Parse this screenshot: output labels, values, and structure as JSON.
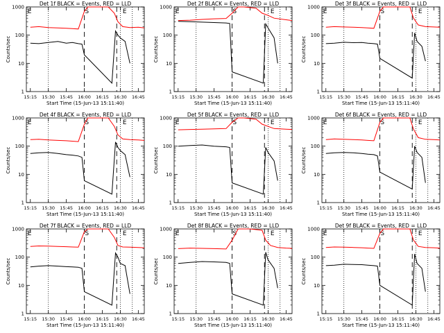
{
  "chart_data": [
    {
      "type": "line",
      "title": "Det 1f BLACK = Events, RED = LLD",
      "xlabel": "Start Time (15-Jun-13 15:11:40)",
      "ylabel": "Counts/sec",
      "yscale": "log",
      "ylim": [
        1,
        1000
      ],
      "y_ticks": [
        "1",
        "10",
        "100",
        "1000"
      ],
      "x_ticks": [
        "15:15",
        "15:30",
        "15:45",
        "16:00",
        "16:15",
        "16:30",
        "16:45"
      ],
      "grid": false,
      "markers": [
        "E",
        "S",
        "E"
      ],
      "colors": {
        "events": "#000000",
        "lld": "#ff0000"
      },
      "series": [
        {
          "name": "Events",
          "color": "#000000",
          "x": [
            "15:15",
            "15:22",
            "15:30",
            "15:38",
            "15:45",
            "15:50",
            "15:55",
            "15:58",
            "16:00",
            "16:23",
            "16:26",
            "16:28",
            "16:30",
            "16:34",
            "16:38"
          ],
          "values": [
            52,
            50,
            55,
            60,
            52,
            55,
            50,
            48,
            20,
            2,
            140,
            100,
            80,
            60,
            10
          ]
        },
        {
          "name": "LLD",
          "color": "#ff0000",
          "x": [
            "15:15",
            "15:22",
            "15:30",
            "15:38",
            "15:45",
            "15:50",
            "15:55",
            "16:00",
            "16:03",
            "16:20",
            "16:25",
            "16:28",
            "16:32",
            "16:38",
            "16:45",
            "16:50"
          ],
          "values": [
            190,
            200,
            185,
            180,
            175,
            170,
            165,
            700,
            1000,
            1000,
            600,
            300,
            200,
            185,
            190,
            180
          ]
        }
      ]
    },
    {
      "type": "line",
      "title": "Det 2f BLACK = Events, RED = LLD",
      "xlabel": "Start Time (15-Jun-13 15:11:40)",
      "ylabel": "Counts/sec",
      "yscale": "log",
      "ylim": [
        1,
        1000
      ],
      "y_ticks": [
        "1",
        "10",
        "100",
        "1000"
      ],
      "x_ticks": [
        "15:15",
        "15:30",
        "15:45",
        "16:00",
        "16:15",
        "16:30",
        "16:45"
      ],
      "grid": false,
      "markers": [
        "E",
        "S",
        "E"
      ],
      "colors": {
        "events": "#000000",
        "lld": "#ff0000"
      },
      "series": [
        {
          "name": "Events",
          "color": "#000000",
          "x": [
            "15:15",
            "15:25",
            "15:35",
            "15:45",
            "15:55",
            "15:58",
            "16:00",
            "16:26",
            "16:28",
            "16:30",
            "16:35",
            "16:38"
          ],
          "values": [
            310,
            300,
            290,
            280,
            270,
            260,
            5,
            2,
            250,
            180,
            80,
            10
          ]
        },
        {
          "name": "LLD",
          "color": "#ff0000",
          "x": [
            "15:15",
            "15:25",
            "15:35",
            "15:45",
            "15:55",
            "16:00",
            "16:05",
            "16:10",
            "16:20",
            "16:25",
            "16:30",
            "16:35",
            "16:45",
            "16:50"
          ],
          "values": [
            330,
            340,
            360,
            380,
            390,
            600,
            1000,
            1000,
            900,
            600,
            500,
            400,
            350,
            330
          ]
        }
      ]
    },
    {
      "type": "line",
      "title": "Det 3f BLACK = Events, RED = LLD",
      "xlabel": "Start Time (15-Jun-13 15:11:40)",
      "ylabel": "Counts/sec",
      "yscale": "log",
      "ylim": [
        1,
        1000
      ],
      "y_ticks": [
        "1",
        "10",
        "100",
        "1000"
      ],
      "x_ticks": [
        "15:15",
        "15:30",
        "15:45",
        "16:00",
        "16:15",
        "16:30",
        "16:45"
      ],
      "grid": false,
      "markers": [
        "E",
        "S",
        "E"
      ],
      "colors": {
        "events": "#000000",
        "lld": "#ff0000"
      },
      "series": [
        {
          "name": "Events",
          "color": "#000000",
          "x": [
            "15:15",
            "15:22",
            "15:30",
            "15:38",
            "15:45",
            "15:50",
            "15:55",
            "15:58",
            "16:00",
            "16:27",
            "16:29",
            "16:31",
            "16:35",
            "16:38"
          ],
          "values": [
            50,
            52,
            56,
            54,
            55,
            52,
            50,
            48,
            15,
            3,
            120,
            60,
            40,
            12
          ]
        },
        {
          "name": "LLD",
          "color": "#ff0000",
          "x": [
            "15:15",
            "15:22",
            "15:30",
            "15:38",
            "15:45",
            "15:50",
            "15:55",
            "16:00",
            "16:03",
            "16:25",
            "16:28",
            "16:32",
            "16:38",
            "16:45",
            "16:50"
          ],
          "values": [
            190,
            200,
            195,
            190,
            185,
            180,
            175,
            700,
            1000,
            1000,
            400,
            230,
            200,
            195,
            190
          ]
        }
      ]
    },
    {
      "type": "line",
      "title": "Det 4f BLACK = Events, RED = LLD",
      "xlabel": "Start Time (15-Jun-13 15:11:40)",
      "ylabel": "Counts/sec",
      "yscale": "log",
      "ylim": [
        1,
        1000
      ],
      "y_ticks": [
        "1",
        "10",
        "100",
        "1000"
      ],
      "x_ticks": [
        "15:15",
        "15:30",
        "15:45",
        "16:00",
        "16:15",
        "16:30",
        "16:45"
      ],
      "grid": false,
      "markers": [
        "E",
        "S",
        "E"
      ],
      "colors": {
        "events": "#000000",
        "lld": "#ff0000"
      },
      "series": [
        {
          "name": "Events",
          "color": "#000000",
          "x": [
            "15:15",
            "15:22",
            "15:30",
            "15:38",
            "15:45",
            "15:50",
            "15:55",
            "15:58",
            "16:00",
            "16:23",
            "16:26",
            "16:28",
            "16:30",
            "16:34",
            "16:38"
          ],
          "values": [
            55,
            58,
            60,
            55,
            50,
            48,
            45,
            40,
            6,
            2,
            140,
            90,
            70,
            50,
            8
          ]
        },
        {
          "name": "LLD",
          "color": "#ff0000",
          "x": [
            "15:15",
            "15:22",
            "15:30",
            "15:38",
            "15:45",
            "15:50",
            "15:55",
            "16:00",
            "16:03",
            "16:20",
            "16:25",
            "16:28",
            "16:32",
            "16:38",
            "16:45",
            "16:50"
          ],
          "values": [
            170,
            175,
            165,
            160,
            155,
            150,
            145,
            600,
            1000,
            1000,
            500,
            250,
            180,
            170,
            165,
            160
          ]
        }
      ]
    },
    {
      "type": "line",
      "title": "Det 5f BLACK = Events, RED = LLD",
      "xlabel": "Start Time (15-Jun-13 15:11:40)",
      "ylabel": "Counts/sec",
      "yscale": "log",
      "ylim": [
        1,
        1000
      ],
      "y_ticks": [
        "1",
        "10",
        "100",
        "1000"
      ],
      "x_ticks": [
        "15:15",
        "15:30",
        "15:45",
        "16:00",
        "16:15",
        "16:30",
        "16:45"
      ],
      "grid": false,
      "markers": [
        "E",
        "S",
        "E"
      ],
      "colors": {
        "events": "#000000",
        "lld": "#ff0000"
      },
      "series": [
        {
          "name": "Events",
          "color": "#000000",
          "x": [
            "15:15",
            "15:25",
            "15:35",
            "15:45",
            "15:55",
            "15:58",
            "16:00",
            "16:26",
            "16:28",
            "16:30",
            "16:35",
            "16:38"
          ],
          "values": [
            100,
            105,
            110,
            100,
            95,
            90,
            5,
            2,
            90,
            60,
            30,
            6
          ]
        },
        {
          "name": "LLD",
          "color": "#ff0000",
          "x": [
            "15:15",
            "15:25",
            "15:35",
            "15:45",
            "15:55",
            "16:00",
            "16:05",
            "16:10",
            "16:20",
            "16:25",
            "16:30",
            "16:35",
            "16:45",
            "16:50"
          ],
          "values": [
            380,
            390,
            400,
            410,
            420,
            700,
            1000,
            1000,
            900,
            600,
            500,
            420,
            400,
            390
          ]
        }
      ]
    },
    {
      "type": "line",
      "title": "Det 6f BLACK = Events, RED = LLD",
      "xlabel": "Start Time (15-Jun-13 15:11:40)",
      "ylabel": "Counts/sec",
      "yscale": "log",
      "ylim": [
        1,
        1000
      ],
      "y_ticks": [
        "1",
        "10",
        "100",
        "1000"
      ],
      "x_ticks": [
        "15:15",
        "15:30",
        "15:45",
        "16:00",
        "16:15",
        "16:30",
        "16:45"
      ],
      "grid": false,
      "markers": [
        "E",
        "S",
        "E"
      ],
      "colors": {
        "events": "#000000",
        "lld": "#ff0000"
      },
      "series": [
        {
          "name": "Events",
          "color": "#000000",
          "x": [
            "15:15",
            "15:22",
            "15:30",
            "15:38",
            "15:45",
            "15:50",
            "15:55",
            "15:58",
            "16:00",
            "16:27",
            "16:29",
            "16:31",
            "16:35",
            "16:38"
          ],
          "values": [
            55,
            58,
            60,
            58,
            55,
            52,
            50,
            45,
            12,
            3,
            100,
            60,
            40,
            5
          ]
        },
        {
          "name": "LLD",
          "color": "#ff0000",
          "x": [
            "15:15",
            "15:22",
            "15:30",
            "15:38",
            "15:45",
            "15:50",
            "15:55",
            "16:00",
            "16:03",
            "16:25",
            "16:28",
            "16:32",
            "16:38",
            "16:45",
            "16:50"
          ],
          "values": [
            170,
            180,
            175,
            170,
            165,
            160,
            155,
            700,
            1000,
            1000,
            400,
            200,
            175,
            170,
            165
          ]
        }
      ]
    },
    {
      "type": "line",
      "title": "Det 7f BLACK = Events, RED = LLD",
      "xlabel": "Start Time (15-Jun-13 15:11:40)",
      "ylabel": "Counts/sec",
      "yscale": "log",
      "ylim": [
        1,
        1000
      ],
      "y_ticks": [
        "1",
        "10",
        "100",
        "1000"
      ],
      "x_ticks": [
        "15:15",
        "15:30",
        "15:45",
        "16:00",
        "16:15",
        "16:30",
        "16:45"
      ],
      "grid": false,
      "markers": [
        "E",
        "S",
        "E"
      ],
      "colors": {
        "events": "#000000",
        "lld": "#ff0000"
      },
      "series": [
        {
          "name": "Events",
          "color": "#000000",
          "x": [
            "15:15",
            "15:22",
            "15:30",
            "15:38",
            "15:45",
            "15:50",
            "15:55",
            "15:58",
            "16:00",
            "16:23",
            "16:26",
            "16:28",
            "16:30",
            "16:34",
            "16:38"
          ],
          "values": [
            45,
            48,
            50,
            48,
            46,
            45,
            44,
            40,
            6,
            2,
            140,
            100,
            60,
            50,
            5
          ]
        },
        {
          "name": "LLD",
          "color": "#ff0000",
          "x": [
            "15:15",
            "15:22",
            "15:30",
            "15:38",
            "15:45",
            "15:50",
            "15:55",
            "16:00",
            "16:03",
            "16:20",
            "16:25",
            "16:28",
            "16:32",
            "16:38",
            "16:45",
            "16:50"
          ],
          "values": [
            240,
            250,
            245,
            240,
            235,
            230,
            225,
            800,
            1000,
            1000,
            500,
            260,
            230,
            225,
            220,
            215
          ]
        }
      ]
    },
    {
      "type": "line",
      "title": "Det 8f BLACK = Events, RED = LLD",
      "xlabel": "Start Time (15-Jun-13 15:11:40)",
      "ylabel": "Counts/sec",
      "yscale": "log",
      "ylim": [
        1,
        1000
      ],
      "y_ticks": [
        "1",
        "10",
        "100",
        "1000"
      ],
      "x_ticks": [
        "15:15",
        "15:30",
        "15:45",
        "16:00",
        "16:15",
        "16:30",
        "16:45"
      ],
      "grid": false,
      "markers": [
        "E",
        "S",
        "E"
      ],
      "colors": {
        "events": "#000000",
        "lld": "#ff0000"
      },
      "series": [
        {
          "name": "Events",
          "color": "#000000",
          "x": [
            "15:15",
            "15:25",
            "15:35",
            "15:45",
            "15:55",
            "15:58",
            "16:00",
            "16:26",
            "16:28",
            "16:30",
            "16:35",
            "16:38"
          ],
          "values": [
            60,
            65,
            70,
            68,
            65,
            60,
            5,
            2,
            150,
            80,
            40,
            8
          ]
        },
        {
          "name": "LLD",
          "color": "#ff0000",
          "x": [
            "15:15",
            "15:25",
            "15:35",
            "15:45",
            "15:55",
            "16:00",
            "16:05",
            "16:15",
            "16:25",
            "16:28",
            "16:32",
            "16:38",
            "16:45",
            "16:50"
          ],
          "values": [
            200,
            210,
            205,
            200,
            195,
            400,
            1000,
            1000,
            900,
            400,
            260,
            220,
            210,
            205
          ]
        }
      ]
    },
    {
      "type": "line",
      "title": "Det 9f BLACK = Events, RED = LLD",
      "xlabel": "Start Time (15-Jun-13 15:11:40)",
      "ylabel": "Counts/sec",
      "yscale": "log",
      "ylim": [
        1,
        1000
      ],
      "y_ticks": [
        "1",
        "10",
        "100",
        "1000"
      ],
      "x_ticks": [
        "15:15",
        "15:30",
        "15:45",
        "16:00",
        "16:15",
        "16:30",
        "16:45"
      ],
      "grid": false,
      "markers": [
        "E",
        "S",
        "E"
      ],
      "colors": {
        "events": "#000000",
        "lld": "#ff0000"
      },
      "series": [
        {
          "name": "Events",
          "color": "#000000",
          "x": [
            "15:15",
            "15:22",
            "15:30",
            "15:38",
            "15:45",
            "15:50",
            "15:55",
            "15:58",
            "16:00",
            "16:27",
            "16:29",
            "16:31",
            "16:35",
            "16:38"
          ],
          "values": [
            50,
            52,
            56,
            55,
            54,
            52,
            50,
            48,
            10,
            2,
            130,
            60,
            40,
            6
          ]
        },
        {
          "name": "LLD",
          "color": "#ff0000",
          "x": [
            "15:15",
            "15:22",
            "15:30",
            "15:38",
            "15:45",
            "15:50",
            "15:55",
            "16:00",
            "16:03",
            "16:25",
            "16:28",
            "16:32",
            "16:38",
            "16:45",
            "16:50"
          ],
          "values": [
            220,
            230,
            225,
            220,
            215,
            210,
            205,
            700,
            1000,
            1000,
            400,
            240,
            220,
            215,
            210
          ]
        }
      ]
    }
  ]
}
